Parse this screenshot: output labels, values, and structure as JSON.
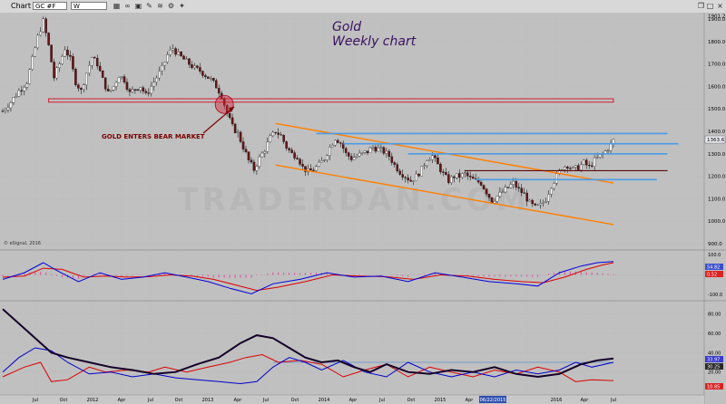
{
  "window": {
    "tab_label": "Chart",
    "symbol_value": "GC #F",
    "interval_value": "W",
    "close_glyph": "×",
    "restore_glyph": "❐",
    "maximize_glyph": "□"
  },
  "toolbar_icons": [
    {
      "name": "grid-icon",
      "glyph": "▦"
    },
    {
      "name": "link-icon",
      "glyph": "∞"
    },
    {
      "name": "lock-icon",
      "glyph": "▣"
    },
    {
      "name": "draw-icon",
      "glyph": "✎"
    },
    {
      "name": "indicator-icon",
      "glyph": "≋"
    },
    {
      "name": "settings-icon",
      "glyph": "⚙"
    },
    {
      "name": "twitter-icon",
      "glyph": "✦"
    }
  ],
  "colors": {
    "background": "#c0c0c0",
    "up_candle": "#ffffff",
    "down_candle": "#6b1414",
    "wick": "#000000",
    "resistance_red": "#d21e32",
    "channel_orange": "#ff7f00",
    "levels_blue": "#4b9be6",
    "support_maroon": "#5a0a0a",
    "annotation_text": "#7a0000",
    "title_text": "#3a1060",
    "watermark": "#b7b7b7",
    "macd_blue": "#0000dd",
    "macd_red": "#dd0000",
    "macd_hist": "#e34a9c",
    "dmi_black": "#140028",
    "dmi_red": "#dd0000",
    "dmi_blue": "#0000cc",
    "hline_blue": "#5a8fd0"
  },
  "title": {
    "line1": "Gold",
    "line2": "Weekly chart"
  },
  "annotation": {
    "text": "GOLD ENTERS BEAR MARKET"
  },
  "watermark": {
    "text": "TRADERDAN.COM"
  },
  "copyright": {
    "text": "© eSignal, 2016"
  },
  "chart_data": {
    "type": "candlestick",
    "instrument": "GC #F",
    "interval": "W",
    "title": "Gold",
    "subtitle": "Weekly chart",
    "ylim": [
      880,
      1920
    ],
    "y_ticks": [
      900,
      1000,
      1100,
      1200,
      1300,
      1400,
      1500,
      1600,
      1700,
      1800,
      1900
    ],
    "y_tick_labels": [
      "900.0",
      "1000.0",
      "1100.0",
      "1200.0",
      "1300.0",
      "1400.0",
      "1500.0",
      "1600.0",
      "1700.0",
      "1800.0",
      "1900.0"
    ],
    "top_price_label": "1901.2",
    "last_price_label": "1363.6",
    "x_labels": [
      "Jul",
      "Oct",
      "2012",
      "Apr",
      "Jul",
      "Oct",
      "2013",
      "Apr",
      "Jul",
      "Oct",
      "2014",
      "Apr",
      "Jul",
      "Oct",
      "2015",
      "Apr",
      "Jul",
      "Oct",
      "2016",
      "Apr",
      "Jul"
    ],
    "highlighted_x_label": "06/22/2015",
    "price_path": [
      [
        0,
        1490
      ],
      [
        3,
        1530
      ],
      [
        6,
        1580
      ],
      [
        9,
        1620
      ],
      [
        11,
        1720
      ],
      [
        13,
        1820
      ],
      [
        15,
        1890
      ],
      [
        17,
        1780
      ],
      [
        19,
        1640
      ],
      [
        21,
        1700
      ],
      [
        23,
        1770
      ],
      [
        25,
        1720
      ],
      [
        27,
        1620
      ],
      [
        29,
        1580
      ],
      [
        31,
        1660
      ],
      [
        33,
        1730
      ],
      [
        35,
        1700
      ],
      [
        37,
        1630
      ],
      [
        39,
        1570
      ],
      [
        41,
        1600
      ],
      [
        43,
        1650
      ],
      [
        45,
        1630
      ],
      [
        47,
        1570
      ],
      [
        49,
        1590
      ],
      [
        51,
        1600
      ],
      [
        53,
        1560
      ],
      [
        55,
        1600
      ],
      [
        57,
        1640
      ],
      [
        59,
        1680
      ],
      [
        61,
        1740
      ],
      [
        63,
        1770
      ],
      [
        65,
        1740
      ],
      [
        67,
        1720
      ],
      [
        69,
        1700
      ],
      [
        71,
        1680
      ],
      [
        73,
        1670
      ],
      [
        75,
        1650
      ],
      [
        77,
        1630
      ],
      [
        79,
        1600
      ],
      [
        81,
        1560
      ],
      [
        83,
        1480
      ],
      [
        85,
        1420
      ],
      [
        87,
        1390
      ],
      [
        89,
        1330
      ],
      [
        91,
        1270
      ],
      [
        93,
        1230
      ],
      [
        95,
        1280
      ],
      [
        97,
        1320
      ],
      [
        99,
        1370
      ],
      [
        101,
        1400
      ],
      [
        103,
        1380
      ],
      [
        105,
        1330
      ],
      [
        107,
        1300
      ],
      [
        109,
        1290
      ],
      [
        111,
        1240
      ],
      [
        113,
        1220
      ],
      [
        115,
        1230
      ],
      [
        117,
        1250
      ],
      [
        119,
        1280
      ],
      [
        121,
        1330
      ],
      [
        123,
        1370
      ],
      [
        125,
        1350
      ],
      [
        127,
        1300
      ],
      [
        129,
        1280
      ],
      [
        131,
        1290
      ],
      [
        133,
        1300
      ],
      [
        135,
        1310
      ],
      [
        137,
        1330
      ],
      [
        139,
        1320
      ],
      [
        141,
        1310
      ],
      [
        143,
        1290
      ],
      [
        145,
        1250
      ],
      [
        147,
        1220
      ],
      [
        149,
        1200
      ],
      [
        151,
        1180
      ],
      [
        153,
        1200
      ],
      [
        155,
        1230
      ],
      [
        157,
        1280
      ],
      [
        159,
        1290
      ],
      [
        161,
        1250
      ],
      [
        163,
        1210
      ],
      [
        165,
        1180
      ],
      [
        167,
        1200
      ],
      [
        169,
        1200
      ],
      [
        171,
        1210
      ],
      [
        173,
        1190
      ],
      [
        175,
        1180
      ],
      [
        177,
        1170
      ],
      [
        179,
        1130
      ],
      [
        181,
        1090
      ],
      [
        183,
        1110
      ],
      [
        185,
        1130
      ],
      [
        187,
        1150
      ],
      [
        189,
        1170
      ],
      [
        191,
        1140
      ],
      [
        193,
        1120
      ],
      [
        195,
        1080
      ],
      [
        197,
        1060
      ],
      [
        199,
        1070
      ],
      [
        201,
        1100
      ],
      [
        203,
        1160
      ],
      [
        205,
        1200
      ],
      [
        207,
        1240
      ],
      [
        209,
        1250
      ],
      [
        211,
        1230
      ],
      [
        213,
        1240
      ],
      [
        215,
        1260
      ],
      [
        217,
        1240
      ],
      [
        219,
        1270
      ],
      [
        221,
        1290
      ],
      [
        223,
        1310
      ],
      [
        225,
        1340
      ],
      [
        226,
        1360
      ]
    ],
    "annotations": [
      {
        "type": "hline",
        "label": "resistance",
        "start_x": 17,
        "end_x": 226,
        "y": [
          1530,
          1545
        ],
        "color": "red"
      },
      {
        "type": "circle",
        "x": 82,
        "y": 1520,
        "color": "red"
      },
      {
        "type": "channel",
        "color": "orange",
        "upper": [
          [
            101,
            1435
          ],
          [
            226,
            1170
          ]
        ],
        "lower": [
          [
            101,
            1250
          ],
          [
            226,
            985
          ]
        ]
      },
      {
        "type": "hline",
        "y": 1390,
        "start_x": 116,
        "end_x": 246,
        "color": "blue"
      },
      {
        "type": "hline",
        "y": 1345,
        "start_x": 126,
        "end_x": 250,
        "color": "blue"
      },
      {
        "type": "hline",
        "y": 1300,
        "start_x": 150,
        "end_x": 246,
        "color": "blue"
      },
      {
        "type": "hline",
        "y": 1185,
        "start_x": 175,
        "end_x": 242,
        "color": "blue"
      },
      {
        "type": "hline",
        "y": 1225,
        "start_x": 171,
        "end_x": 246,
        "color": "maroon"
      }
    ],
    "macd": {
      "ylim": [
        -100,
        100
      ],
      "tick_labels": [
        "100.0",
        "-100.0"
      ],
      "last_labels": [
        "54.82",
        "0.52"
      ],
      "blue": [
        [
          0,
          -20
        ],
        [
          8,
          10
        ],
        [
          15,
          55
        ],
        [
          20,
          20
        ],
        [
          28,
          -30
        ],
        [
          36,
          10
        ],
        [
          44,
          -20
        ],
        [
          52,
          -10
        ],
        [
          60,
          10
        ],
        [
          68,
          -10
        ],
        [
          76,
          -30
        ],
        [
          84,
          -60
        ],
        [
          92,
          -85
        ],
        [
          100,
          -40
        ],
        [
          110,
          -20
        ],
        [
          120,
          10
        ],
        [
          130,
          -10
        ],
        [
          140,
          -5
        ],
        [
          150,
          -30
        ],
        [
          160,
          10
        ],
        [
          170,
          -10
        ],
        [
          180,
          -30
        ],
        [
          190,
          -40
        ],
        [
          198,
          -50
        ],
        [
          206,
          10
        ],
        [
          214,
          40
        ],
        [
          220,
          55
        ],
        [
          226,
          60
        ]
      ],
      "red": [
        [
          0,
          -10
        ],
        [
          8,
          -5
        ],
        [
          15,
          30
        ],
        [
          22,
          25
        ],
        [
          30,
          -10
        ],
        [
          38,
          -5
        ],
        [
          46,
          -10
        ],
        [
          54,
          -8
        ],
        [
          62,
          0
        ],
        [
          70,
          -5
        ],
        [
          78,
          -20
        ],
        [
          86,
          -45
        ],
        [
          94,
          -70
        ],
        [
          102,
          -55
        ],
        [
          112,
          -30
        ],
        [
          122,
          0
        ],
        [
          132,
          -5
        ],
        [
          142,
          -8
        ],
        [
          152,
          -20
        ],
        [
          162,
          0
        ],
        [
          172,
          -5
        ],
        [
          182,
          -20
        ],
        [
          192,
          -30
        ],
        [
          200,
          -35
        ],
        [
          208,
          -10
        ],
        [
          216,
          25
        ],
        [
          222,
          45
        ],
        [
          226,
          55
        ]
      ]
    },
    "dmi": {
      "ylim": [
        0,
        90
      ],
      "tick_labels": [
        "80.00",
        "60.00",
        "40.00",
        "20.00"
      ],
      "last_labels": [
        "33.97",
        "30.25",
        "10.85"
      ],
      "black": [
        [
          0,
          85
        ],
        [
          6,
          70
        ],
        [
          12,
          55
        ],
        [
          18,
          40
        ],
        [
          24,
          35
        ],
        [
          32,
          30
        ],
        [
          40,
          25
        ],
        [
          48,
          22
        ],
        [
          56,
          18
        ],
        [
          64,
          20
        ],
        [
          72,
          28
        ],
        [
          80,
          35
        ],
        [
          88,
          50
        ],
        [
          94,
          58
        ],
        [
          100,
          55
        ],
        [
          106,
          45
        ],
        [
          112,
          35
        ],
        [
          118,
          30
        ],
        [
          124,
          32
        ],
        [
          130,
          25
        ],
        [
          136,
          20
        ],
        [
          142,
          28
        ],
        [
          150,
          20
        ],
        [
          158,
          18
        ],
        [
          166,
          22
        ],
        [
          174,
          20
        ],
        [
          182,
          25
        ],
        [
          190,
          18
        ],
        [
          198,
          15
        ],
        [
          206,
          18
        ],
        [
          214,
          28
        ],
        [
          220,
          32
        ],
        [
          226,
          34
        ]
      ],
      "red": [
        [
          0,
          15
        ],
        [
          8,
          25
        ],
        [
          14,
          30
        ],
        [
          18,
          10
        ],
        [
          24,
          12
        ],
        [
          32,
          25
        ],
        [
          38,
          20
        ],
        [
          46,
          22
        ],
        [
          54,
          20
        ],
        [
          60,
          25
        ],
        [
          68,
          20
        ],
        [
          76,
          25
        ],
        [
          84,
          30
        ],
        [
          90,
          35
        ],
        [
          96,
          38
        ],
        [
          102,
          30
        ],
        [
          110,
          32
        ],
        [
          118,
          28
        ],
        [
          126,
          15
        ],
        [
          134,
          22
        ],
        [
          142,
          28
        ],
        [
          150,
          15
        ],
        [
          158,
          25
        ],
        [
          166,
          20
        ],
        [
          174,
          15
        ],
        [
          182,
          22
        ],
        [
          190,
          18
        ],
        [
          198,
          25
        ],
        [
          206,
          20
        ],
        [
          212,
          10
        ],
        [
          218,
          12
        ],
        [
          226,
          11
        ]
      ],
      "blue": [
        [
          0,
          20
        ],
        [
          6,
          35
        ],
        [
          12,
          45
        ],
        [
          18,
          42
        ],
        [
          24,
          30
        ],
        [
          32,
          18
        ],
        [
          40,
          20
        ],
        [
          48,
          15
        ],
        [
          56,
          18
        ],
        [
          64,
          14
        ],
        [
          72,
          12
        ],
        [
          80,
          10
        ],
        [
          88,
          8
        ],
        [
          94,
          10
        ],
        [
          100,
          25
        ],
        [
          106,
          35
        ],
        [
          112,
          30
        ],
        [
          118,
          22
        ],
        [
          126,
          32
        ],
        [
          134,
          20
        ],
        [
          142,
          15
        ],
        [
          150,
          30
        ],
        [
          158,
          20
        ],
        [
          166,
          15
        ],
        [
          174,
          20
        ],
        [
          182,
          15
        ],
        [
          190,
          22
        ],
        [
          198,
          18
        ],
        [
          206,
          22
        ],
        [
          212,
          30
        ],
        [
          218,
          25
        ],
        [
          226,
          30
        ]
      ],
      "hline": 30
    }
  }
}
